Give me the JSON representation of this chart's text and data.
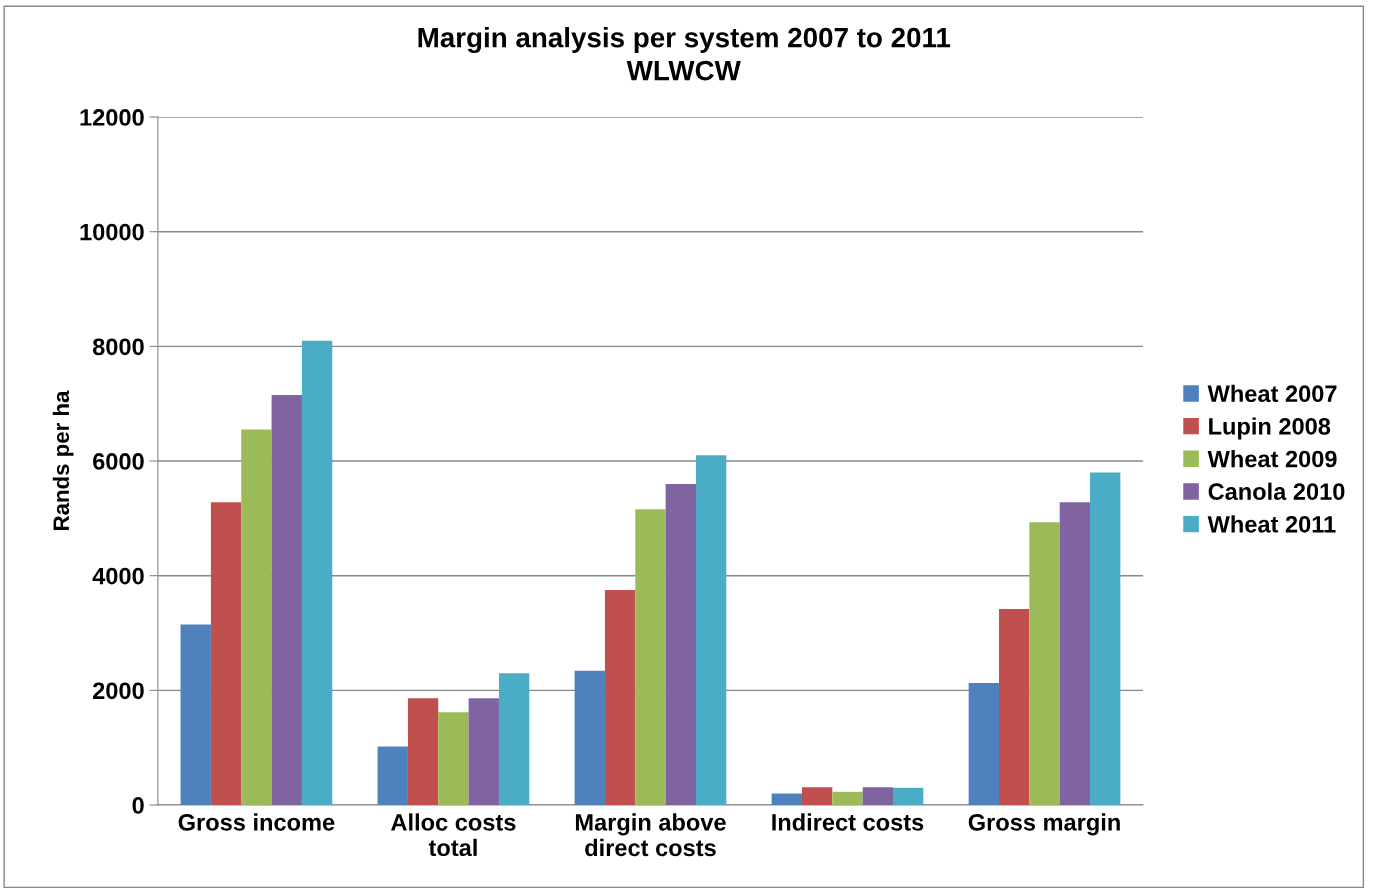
{
  "chart_data": {
    "type": "bar",
    "title": "Margin analysis per system 2007 to 2011",
    "subtitle": "WLWCW",
    "ylabel": "Rands per ha",
    "categories": [
      "Gross income",
      "Alloc costs\ntotal",
      "Margin above\ndirect costs",
      "Indirect costs",
      "Gross margin"
    ],
    "series": [
      {
        "name": "Wheat 2007",
        "color": "#4f81bd",
        "values": [
          3150,
          1020,
          2340,
          200,
          2130
        ]
      },
      {
        "name": "Lupin 2008",
        "color": "#c0504d",
        "values": [
          5280,
          1860,
          3750,
          310,
          3420
        ]
      },
      {
        "name": "Wheat 2009",
        "color": "#9bbb59",
        "values": [
          6550,
          1620,
          5160,
          230,
          4930
        ]
      },
      {
        "name": "Canola 2010",
        "color": "#8064a2",
        "values": [
          7150,
          1860,
          5600,
          310,
          5280
        ]
      },
      {
        "name": "Wheat 2011",
        "color": "#4bacc6",
        "values": [
          8100,
          2300,
          6100,
          300,
          5800
        ]
      }
    ],
    "ylim": [
      0,
      12000
    ],
    "yticks": [
      0,
      2000,
      4000,
      6000,
      8000,
      10000,
      12000
    ],
    "grid": "y",
    "legend": "right"
  }
}
